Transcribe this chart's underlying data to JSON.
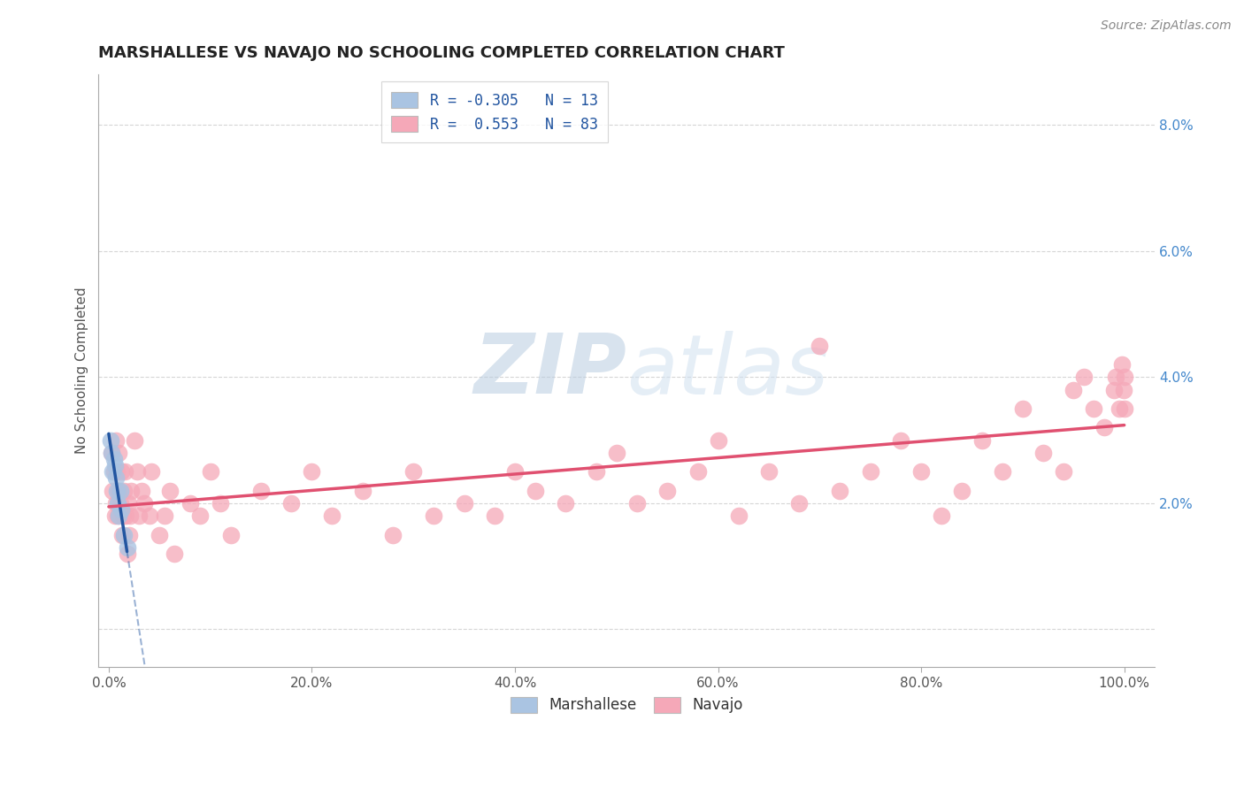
{
  "title": "MARSHALLESE VS NAVAJO NO SCHOOLING COMPLETED CORRELATION CHART",
  "source_text": "Source: ZipAtlas.com",
  "ylabel": "No Schooling Completed",
  "xlim": [
    -0.01,
    1.03
  ],
  "ylim": [
    -0.006,
    0.088
  ],
  "xticks": [
    0.0,
    0.2,
    0.4,
    0.6,
    0.8,
    1.0
  ],
  "yticks": [
    0.0,
    0.02,
    0.04,
    0.06,
    0.08
  ],
  "xticklabels": [
    "0.0%",
    "20.0%",
    "40.0%",
    "60.0%",
    "80.0%",
    "100.0%"
  ],
  "yticklabels_right": [
    "",
    "2.0%",
    "4.0%",
    "6.0%",
    "8.0%"
  ],
  "legend_labels": [
    "Marshallese",
    "Navajo"
  ],
  "R_marshallese": -0.305,
  "N_marshallese": 13,
  "R_navajo": 0.553,
  "N_navajo": 83,
  "color_marshallese": "#aac4e2",
  "color_navajo": "#f5a8b8",
  "color_line_marshallese": "#2255a0",
  "color_line_navajo": "#e05070",
  "watermark_color": "#ccdcec",
  "marshallese_x": [
    0.002,
    0.003,
    0.004,
    0.005,
    0.006,
    0.007,
    0.008,
    0.009,
    0.01,
    0.011,
    0.012,
    0.015,
    0.018
  ],
  "marshallese_y": [
    0.03,
    0.028,
    0.025,
    0.027,
    0.026,
    0.024,
    0.022,
    0.02,
    0.018,
    0.022,
    0.019,
    0.015,
    0.013
  ],
  "navajo_x": [
    0.003,
    0.004,
    0.005,
    0.006,
    0.007,
    0.007,
    0.008,
    0.009,
    0.01,
    0.01,
    0.011,
    0.012,
    0.013,
    0.014,
    0.015,
    0.016,
    0.017,
    0.018,
    0.019,
    0.02,
    0.021,
    0.022,
    0.025,
    0.028,
    0.03,
    0.032,
    0.035,
    0.04,
    0.042,
    0.05,
    0.055,
    0.06,
    0.065,
    0.08,
    0.09,
    0.1,
    0.11,
    0.12,
    0.15,
    0.18,
    0.2,
    0.22,
    0.25,
    0.28,
    0.3,
    0.32,
    0.35,
    0.38,
    0.4,
    0.42,
    0.45,
    0.48,
    0.5,
    0.52,
    0.55,
    0.58,
    0.6,
    0.62,
    0.65,
    0.68,
    0.7,
    0.72,
    0.75,
    0.78,
    0.8,
    0.82,
    0.84,
    0.86,
    0.88,
    0.9,
    0.92,
    0.94,
    0.95,
    0.96,
    0.97,
    0.98,
    0.99,
    0.992,
    0.995,
    0.998,
    0.999,
    1.0,
    1.0
  ],
  "navajo_y": [
    0.028,
    0.022,
    0.025,
    0.018,
    0.03,
    0.02,
    0.025,
    0.018,
    0.022,
    0.028,
    0.02,
    0.025,
    0.015,
    0.018,
    0.022,
    0.025,
    0.018,
    0.012,
    0.02,
    0.015,
    0.018,
    0.022,
    0.03,
    0.025,
    0.018,
    0.022,
    0.02,
    0.018,
    0.025,
    0.015,
    0.018,
    0.022,
    0.012,
    0.02,
    0.018,
    0.025,
    0.02,
    0.015,
    0.022,
    0.02,
    0.025,
    0.018,
    0.022,
    0.015,
    0.025,
    0.018,
    0.02,
    0.018,
    0.025,
    0.022,
    0.02,
    0.025,
    0.028,
    0.02,
    0.022,
    0.025,
    0.03,
    0.018,
    0.025,
    0.02,
    0.045,
    0.022,
    0.025,
    0.03,
    0.025,
    0.018,
    0.022,
    0.03,
    0.025,
    0.035,
    0.028,
    0.025,
    0.038,
    0.04,
    0.035,
    0.032,
    0.038,
    0.04,
    0.035,
    0.042,
    0.038,
    0.035,
    0.04
  ]
}
